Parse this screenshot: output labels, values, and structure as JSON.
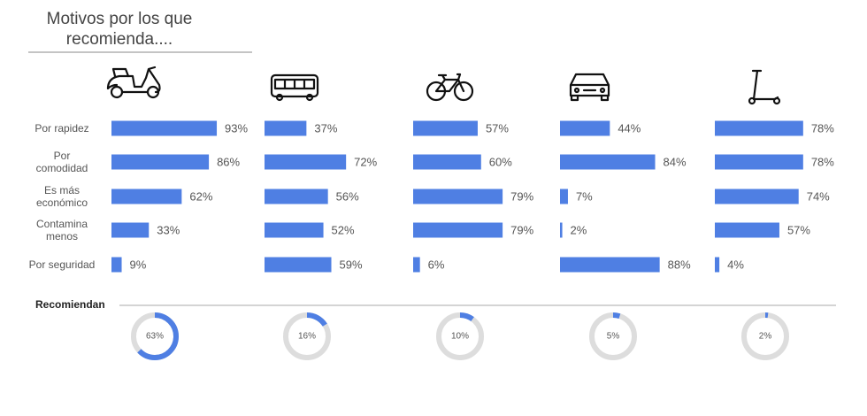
{
  "title": "Motivos por los que recomienda....",
  "chart_data": [
    {
      "type": "bar",
      "orientation": "horizontal",
      "categories": [
        "Por rapidez",
        "Por comodidad",
        "Es más económico",
        "Contamina menos",
        "Por seguridad"
      ],
      "values": [
        93,
        86,
        62,
        33,
        9
      ],
      "value_labels": [
        "93%",
        "86%",
        "62%",
        "33%",
        "9%"
      ],
      "color": "#4f7fe3",
      "xlim": [
        0,
        100
      ]
    },
    {
      "type": "bar",
      "orientation": "horizontal",
      "values": [
        37,
        72,
        56,
        52,
        59
      ],
      "value_labels": [
        "37%",
        "72%",
        "56%",
        "52%",
        "59%"
      ],
      "color": "#4f7fe3",
      "xlim": [
        0,
        100
      ]
    },
    {
      "type": "bar",
      "orientation": "horizontal",
      "values": [
        57,
        60,
        79,
        79,
        6
      ],
      "value_labels": [
        "57%",
        "60%",
        "79%",
        "79%",
        "6%"
      ],
      "color": "#4f7fe3",
      "xlim": [
        0,
        100
      ]
    },
    {
      "type": "bar",
      "orientation": "horizontal",
      "values": [
        44,
        84,
        7,
        2,
        88
      ],
      "value_labels": [
        "44%",
        "84%",
        "7%",
        "2%",
        "88%"
      ],
      "color": "#4f7fe3",
      "xlim": [
        0,
        100
      ]
    },
    {
      "type": "bar",
      "orientation": "horizontal",
      "values": [
        78,
        78,
        74,
        57,
        4
      ],
      "value_labels": [
        "78%",
        "78%",
        "74%",
        "57%",
        "4%"
      ],
      "color": "#4f7fe3",
      "xlim": [
        0,
        100
      ]
    },
    {
      "type": "donut",
      "title": "Recomiendan",
      "values": [
        63,
        16,
        10,
        5,
        2
      ],
      "value_labels": [
        "63%",
        "16%",
        "10%",
        "5%",
        "2%"
      ],
      "color": "#4f7fe3",
      "track_color": "#dddddd",
      "xlim": [
        0,
        100
      ]
    }
  ]
}
